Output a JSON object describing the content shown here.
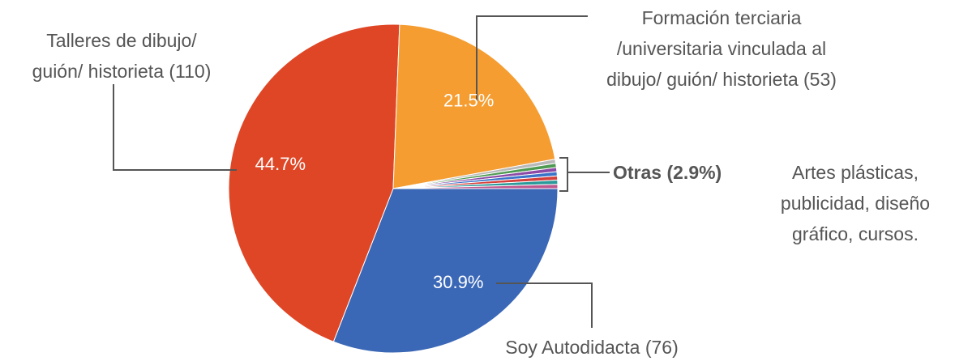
{
  "chart_data": {
    "type": "pie",
    "categories": [
      "Soy Autodidacta (76)",
      "Talleres de dibujo/\nguión/ historieta (110)",
      "Formación terciaria\n/universitaria vinculada al\ndibujo/ guión/ historieta (53)",
      null,
      null,
      null,
      null,
      null,
      null,
      null
    ],
    "values": [
      30.9,
      44.7,
      21.5,
      0.41,
      0.41,
      0.41,
      0.41,
      0.41,
      0.41,
      0.41
    ],
    "value_labels": [
      "30.9%",
      "44.7%",
      "21.5%",
      null,
      null,
      null,
      null,
      null,
      null,
      null
    ],
    "colors": [
      "#3a67b6",
      "#df4626",
      "#f59d31",
      "#b9b9b9",
      "#4e9a52",
      "#8d4aa6",
      "#3b74c9",
      "#d6403b",
      "#2a9a9a",
      "#c0588f"
    ],
    "others_label": "Otras (2.9%)",
    "others_note": "Artes plásticas,\npublicidad, diseño\ngráfico, cursos."
  }
}
